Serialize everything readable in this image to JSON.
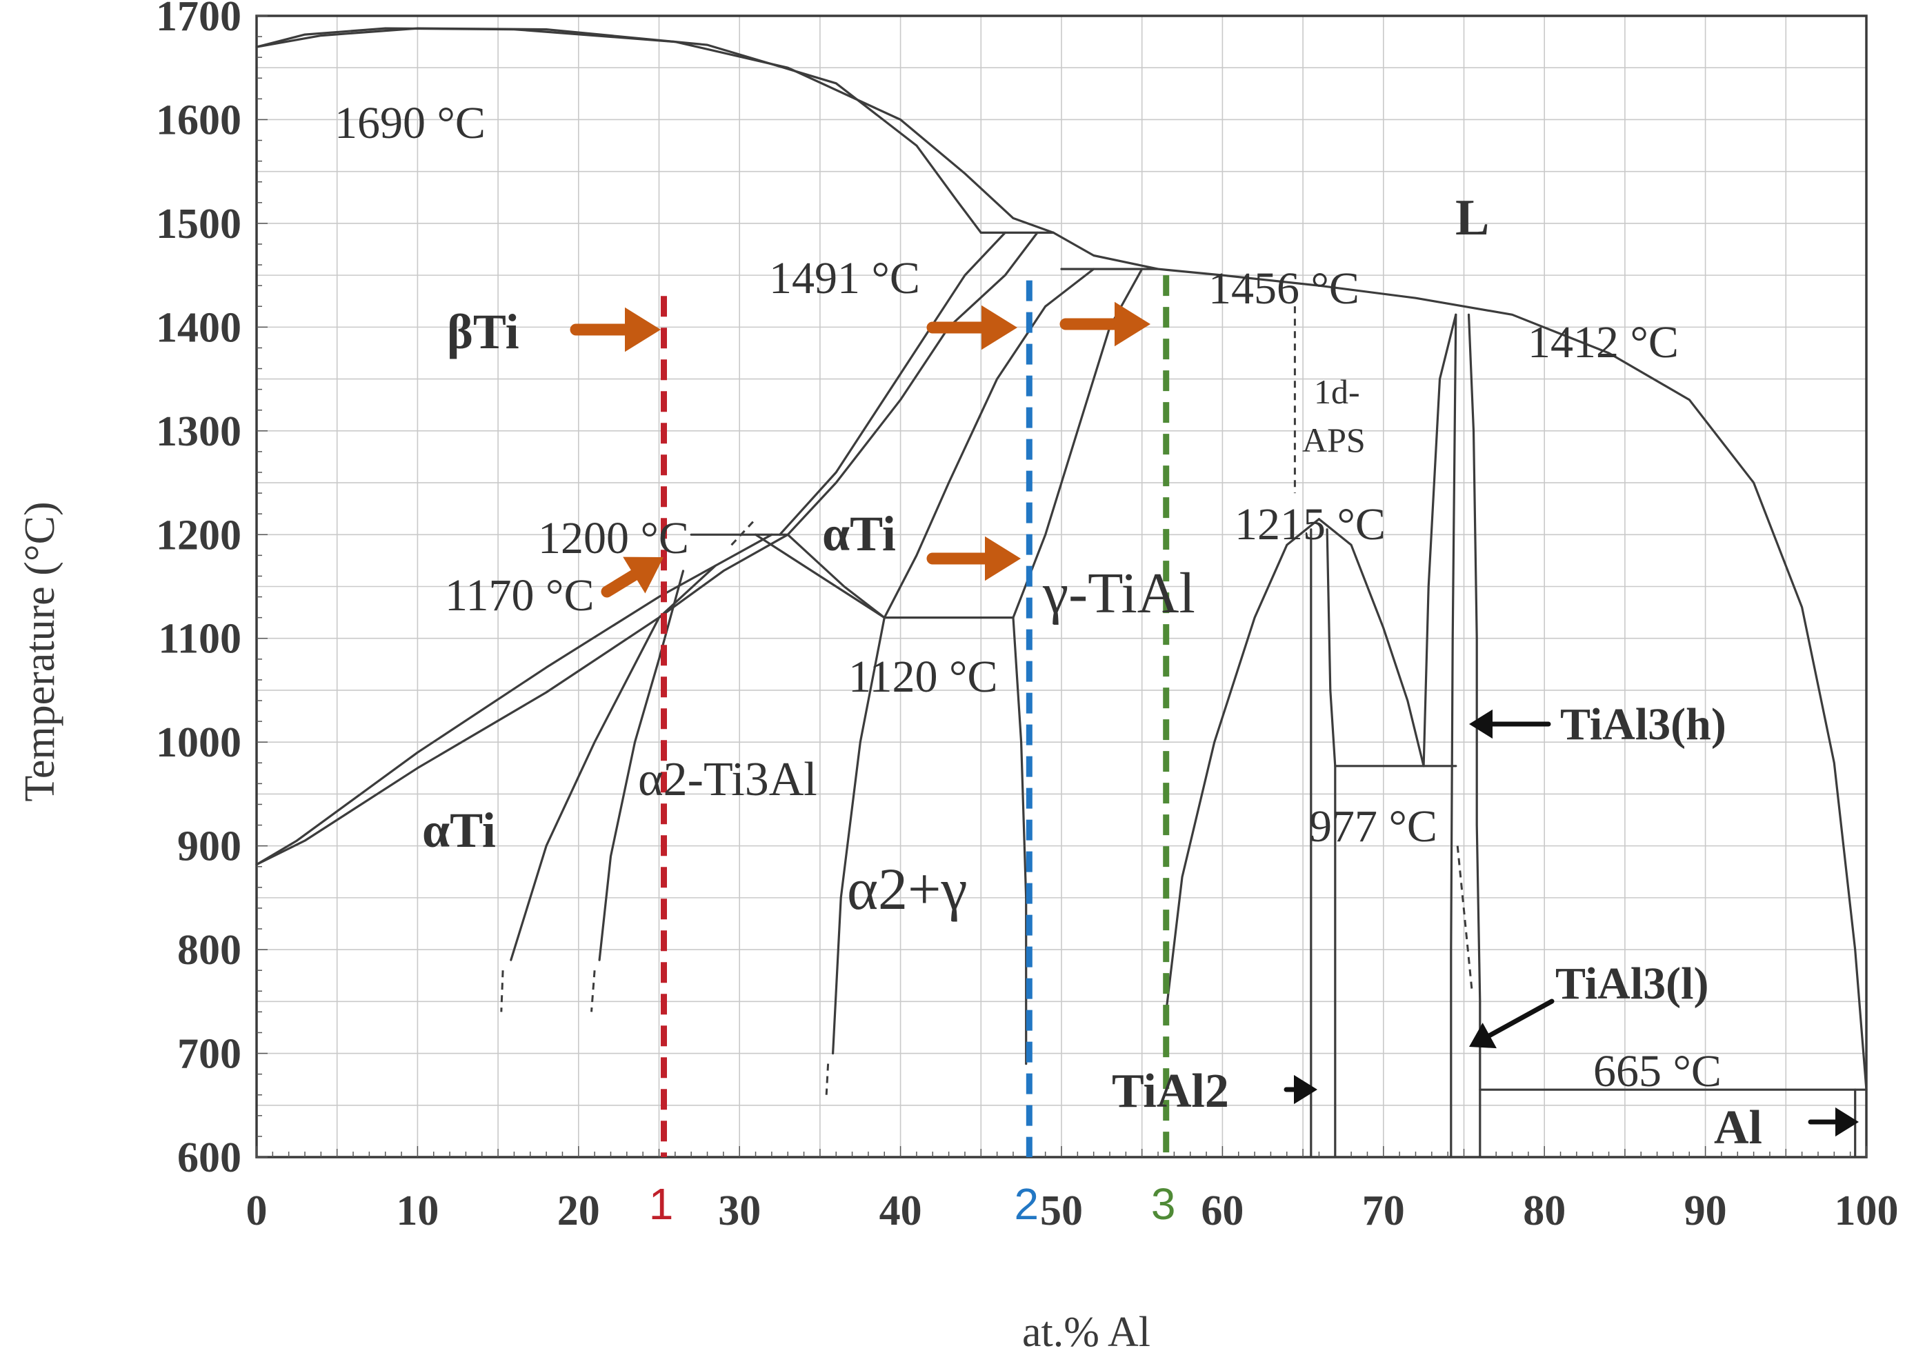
{
  "chart_data": {
    "type": "phase-diagram",
    "title": "",
    "xlabel": "at.% Al",
    "ylabel": "Temperature (°C)",
    "xlim": [
      0,
      100
    ],
    "ylim": [
      600,
      1700
    ],
    "grid": true,
    "x_ticks": [
      "0",
      "10",
      "20",
      "30",
      "40",
      "50",
      "60",
      "70",
      "80",
      "90",
      "100"
    ],
    "y_ticks": [
      "600",
      "700",
      "800",
      "900",
      "1000",
      "1100",
      "1200",
      "1300",
      "1400",
      "1500",
      "1600",
      "1700"
    ],
    "phase_labels": {
      "liquid": "L",
      "beta_ti": "βTi",
      "alpha_ti_high": "αTi",
      "alpha_ti_low": "αTi",
      "alpha2_ti3al": "α2-Ti3Al",
      "alpha2_gamma": "α2+γ",
      "gamma_tial": "γ-TiAl",
      "tial2": "TiAl2",
      "tial3_h": "TiAl3(h)",
      "tial3_l": "TiAl3(l)",
      "al": "Al",
      "one_d_aps_line1": "1d-",
      "one_d_aps_line2": "APS"
    },
    "temperature_annotations": [
      {
        "text": "1690 °C",
        "x": 10,
        "y": 1688
      },
      {
        "text": "1491 °C",
        "x": 44.5,
        "y": 1491
      },
      {
        "text": "1456 °C",
        "x": 50.5,
        "y": 1456
      },
      {
        "text": "1412 °C",
        "x": 75.5,
        "y": 1412
      },
      {
        "text": "1215 °C",
        "x": 66,
        "y": 1215
      },
      {
        "text": "1200 °C",
        "x": 32,
        "y": 1200
      },
      {
        "text": "1170 °C",
        "x": 27,
        "y": 1170
      },
      {
        "text": "1120 °C",
        "x": 47,
        "y": 1120
      },
      {
        "text": "977 °C",
        "x": 70,
        "y": 977
      },
      {
        "text": "665 °C",
        "x": 100,
        "y": 665
      }
    ],
    "composition_markers": [
      {
        "label": "1",
        "x": 25.3,
        "color": "#c0202a"
      },
      {
        "label": "2",
        "x": 48,
        "color": "#2277c4"
      },
      {
        "label": "3",
        "x": 56.5,
        "color": "#4f8a36"
      }
    ],
    "arrow_color": "#c55a11"
  }
}
